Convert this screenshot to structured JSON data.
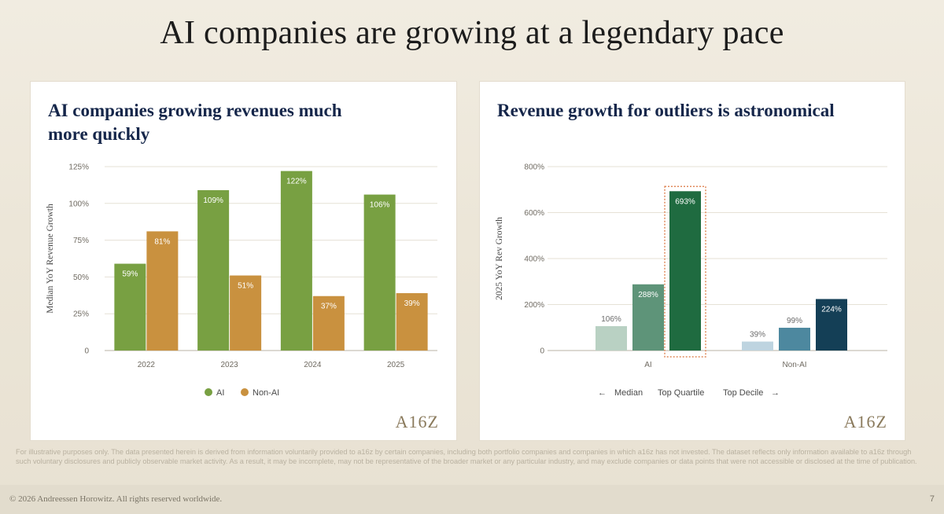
{
  "slide": {
    "title": "AI companies are growing at a legendary pace",
    "footnote": "For illustrative purposes only. The data presented herein is derived from information voluntarily provided to a16z by certain companies, including both portfolio companies and companies in which a16z has not invested. The dataset reflects only information available to a16z through such voluntary disclosures and publicly observable market activity. As a result, it may be incomplete, may not be representative of the broader market or any particular industry, and may exclude companies or data points that were not accessible or disclosed at the time of publication.",
    "copyright": "© 2026 Andreessen Horowitz. All rights reserved worldwide.",
    "page_number": "7",
    "logo": "A16Z"
  },
  "chart_data": [
    {
      "type": "bar",
      "title": "AI companies growing revenues much more quickly",
      "xlabel": "",
      "ylabel": "Median YoY Revenue Growth",
      "categories": [
        "2022",
        "2023",
        "2024",
        "2025"
      ],
      "series": [
        {
          "name": "AI",
          "values": [
            59,
            109,
            122,
            106
          ],
          "labels": [
            "59%",
            "109%",
            "122%",
            "106%"
          ],
          "color": "#78a042"
        },
        {
          "name": "Non-AI",
          "values": [
            81,
            51,
            37,
            39
          ],
          "labels": [
            "81%",
            "51%",
            "37%",
            "39%"
          ],
          "color": "#c9913f"
        }
      ],
      "ylim": [
        0,
        125
      ],
      "yticks": [
        0,
        25,
        50,
        75,
        100,
        125
      ],
      "ytick_labels": [
        "0",
        "25%",
        "50%",
        "75%",
        "100%",
        "125%"
      ],
      "grid": true,
      "legend": "bottom"
    },
    {
      "type": "bar",
      "title": "Revenue growth for outliers is astronomical",
      "xlabel": "",
      "ylabel": "2025 YoY Rev Growth",
      "categories": [
        "AI",
        "Non-AI"
      ],
      "series": [
        {
          "name": "Median",
          "values": [
            106,
            39
          ],
          "labels": [
            "106%",
            "39%"
          ],
          "colors": [
            "#b9d1c3",
            "#bed4e0"
          ]
        },
        {
          "name": "Top Quartile",
          "values": [
            288,
            99
          ],
          "labels": [
            "288%",
            "99%"
          ],
          "colors": [
            "#5e9479",
            "#4d889f"
          ]
        },
        {
          "name": "Top Decile",
          "values": [
            693,
            224
          ],
          "labels": [
            "693%",
            "224%"
          ],
          "colors": [
            "#1f6b40",
            "#143f56"
          ]
        }
      ],
      "highlight": {
        "category": "AI",
        "series": "Top Decile",
        "color": "#e08a5c"
      },
      "ylim": [
        0,
        800
      ],
      "yticks": [
        0,
        200,
        400,
        600,
        800
      ],
      "ytick_labels": [
        "0",
        "200%",
        "400%",
        "600%",
        "800%"
      ],
      "grid": true,
      "legend": "bottom",
      "legend_left_arrow": "←",
      "legend_right_arrow": "→"
    }
  ]
}
